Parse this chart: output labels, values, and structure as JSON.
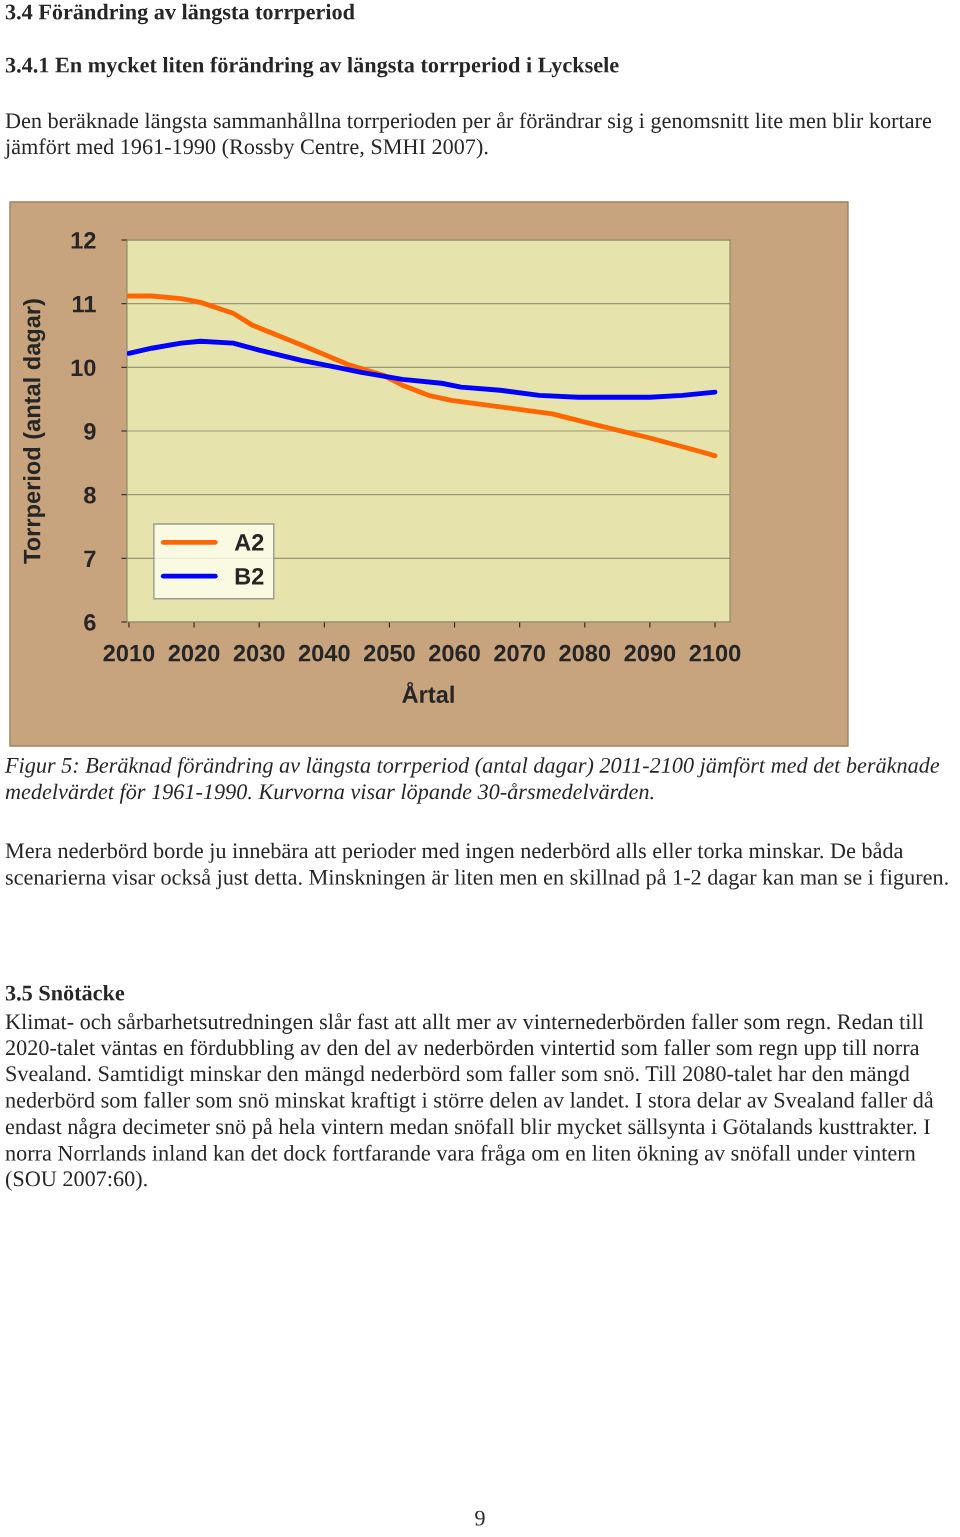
{
  "chart_data": {
    "type": "line",
    "title": "3.4 Förändring av längsta torrperiod",
    "subtitle": "3.4.1 En mycket liten förändring av längsta torrperiod i Lycksele",
    "xlabel": "Årtal",
    "ylabel": "Torrperiod (antal dagar)",
    "annotations": [
      "Den beräknade längsta sammanhållna torrperioden per år förändrar sig i genomsnitt lite men blir kortare jämfört med 1961-1990 (Rossby Centre, SMHI 2007).",
      "Figur 5: Beräknad förändring av längsta torrperiod (antal dagar) 2011-2100 jämfört med det beräknade medelvärdet för 1961-1990. Kurvorna visar löpande 30-årsmedelvärden.",
      "Mera nederbörd borde ju innebära att perioder med ingen nederbörd alls eller torka minskar. De båda scenarierna visar också just detta. Minskningen är liten men en skillnad på 1-2 dagar kan man se i figuren.",
      "3.5 Snötäcke",
      "Klimat- och sårbarhetsutredningen slår fast att allt mer av vinternederbörden faller som regn. Redan till 2020-talet väntas en fördubbling av den del av nederbörden vintertid som faller som regn upp till norra Svealand. Samtidigt minskar den mängd nederbörd som faller som snö. Till 2080-talet har den mängd nederbörd som faller som snö minskat kraftigt i större delen av landet. I stora delar av Svealand faller då endast några decimeter snö på hela vintern medan snöfall blir mycket sällsynta i Götalands kusttrakter. I norra Norrlands inland kan det dock fortfarande vara fråga om en liten ökning av snöfall under vintern (SOU 2007:60).",
      "9"
    ],
    "series": [
      {
        "name": "A2",
        "color": "#ff6600",
        "x": [
          2010,
          2013.5,
          2018,
          2021,
          2026,
          2029,
          2036.5,
          2044,
          2049,
          2052,
          2056,
          2059.5,
          2067,
          2075,
          2082,
          2090,
          2098,
          2100
        ],
        "values": [
          11.12,
          11.12,
          11.08,
          11.02,
          10.85,
          10.66,
          10.35,
          10.03,
          9.88,
          9.72,
          9.56,
          9.48,
          9.38,
          9.27,
          9.09,
          8.89,
          8.67,
          8.61
        ]
      },
      {
        "name": "B2",
        "color": "#0000ff",
        "x": [
          2010,
          2013.5,
          2018,
          2021,
          2026,
          2030,
          2036.5,
          2041,
          2045.7,
          2052,
          2058,
          2061,
          2067,
          2073,
          2079,
          2090,
          2095,
          2100
        ],
        "values": [
          10.22,
          10.3,
          10.38,
          10.41,
          10.38,
          10.27,
          10.11,
          10.02,
          9.92,
          9.81,
          9.75,
          9.69,
          9.64,
          9.56,
          9.53,
          9.53,
          9.56,
          9.61
        ]
      }
    ],
    "xlim": [
      2009.7,
      2102.3
    ],
    "xticks": [
      2010,
      2020,
      2030,
      2040,
      2050,
      2060,
      2070,
      2080,
      2090,
      2100
    ],
    "ylim": [
      6,
      12
    ],
    "yticks": [
      6,
      7,
      8,
      9,
      10,
      11,
      12
    ],
    "grid": "y",
    "legend": "bottom left",
    "marker": "none",
    "line_style": "solid"
  }
}
